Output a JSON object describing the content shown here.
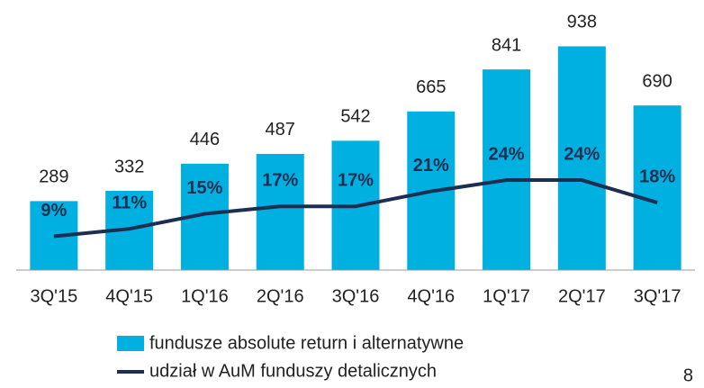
{
  "chart_data": {
    "type": "bar",
    "categories": [
      "3Q'15",
      "4Q'15",
      "1Q'16",
      "2Q'16",
      "3Q'16",
      "4Q'16",
      "1Q'17",
      "2Q'17",
      "3Q'17"
    ],
    "ylim": [
      0,
      1100
    ],
    "y2lim": [
      0,
      70
    ],
    "series": [
      {
        "name": "fundusze absolute return i alternatywne",
        "type": "bar",
        "color": "#00b0e0",
        "values": [
          289,
          332,
          446,
          487,
          542,
          665,
          841,
          938,
          690
        ]
      },
      {
        "name": "udział w AuM funduszy detalicznych",
        "type": "line",
        "axis": "y2",
        "color": "#1c2e52",
        "values": [
          9,
          11,
          15,
          17,
          17,
          21,
          24,
          24,
          18
        ],
        "value_labels": [
          "9%",
          "11%",
          "15%",
          "17%",
          "17%",
          "21%",
          "24%",
          "24%",
          "18%"
        ]
      }
    ]
  },
  "page_number": "8"
}
